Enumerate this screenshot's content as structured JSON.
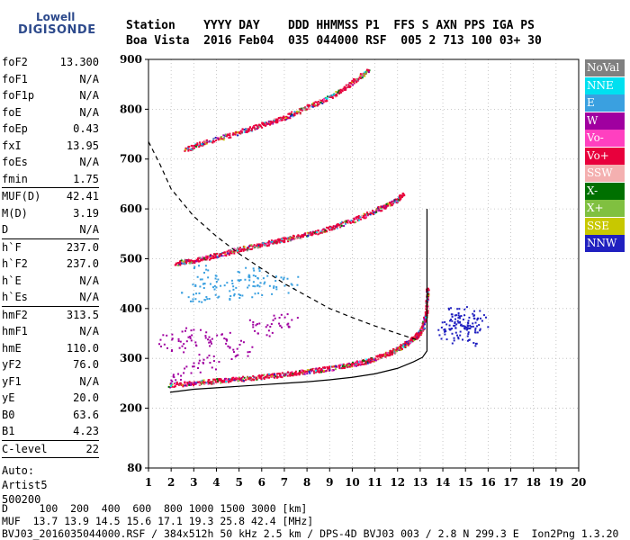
{
  "logo": {
    "line1": "Lowell",
    "line2": "DIGISONDE"
  },
  "header": {
    "line1": "Station    YYYY DAY    DDD HHMMSS P1  FFS S AXN PPS IGA PS",
    "line2": "Boa Vista  2016 Feb04  035 044000 RSF  005 2 713 100 03+ 30"
  },
  "params": [
    {
      "group": [
        {
          "label": "foF2",
          "value": "13.300"
        },
        {
          "label": "foF1",
          "value": "N/A"
        },
        {
          "label": "foF1p",
          "value": "N/A"
        },
        {
          "label": "foE",
          "value": "N/A"
        },
        {
          "label": "foEp",
          "value": "0.43"
        },
        {
          "label": "fxI",
          "value": "13.95"
        },
        {
          "label": "foEs",
          "value": "N/A"
        },
        {
          "label": "fmin",
          "value": "1.75"
        }
      ]
    },
    {
      "group": [
        {
          "label": "MUF(D)",
          "value": "42.41"
        },
        {
          "label": "M(D)",
          "value": "3.19"
        },
        {
          "label": "D",
          "value": "N/A"
        }
      ]
    },
    {
      "group": [
        {
          "label": "h`F",
          "value": "237.0"
        },
        {
          "label": "h`F2",
          "value": "237.0"
        },
        {
          "label": "h`E",
          "value": "N/A"
        },
        {
          "label": "h`Es",
          "value": "N/A"
        }
      ]
    },
    {
      "group": [
        {
          "label": "hmF2",
          "value": "313.5"
        },
        {
          "label": "hmF1",
          "value": "N/A"
        },
        {
          "label": "hmE",
          "value": "110.0"
        },
        {
          "label": "yF2",
          "value": "76.0"
        },
        {
          "label": "yF1",
          "value": "N/A"
        },
        {
          "label": "yE",
          "value": "20.0"
        },
        {
          "label": "B0",
          "value": "63.6"
        },
        {
          "label": "B1",
          "value": "4.23"
        }
      ]
    },
    {
      "group": [
        {
          "label": "C-level",
          "value": "22"
        }
      ]
    }
  ],
  "auto": {
    "line1": "Auto:",
    "line2": "Artist5",
    "line3": "500200"
  },
  "legend": [
    {
      "label": "NoVal",
      "color": "#808080"
    },
    {
      "label": "NNE",
      "color": "#00e0f0"
    },
    {
      "label": "E",
      "color": "#3aa0e0"
    },
    {
      "label": "W",
      "color": "#a000a0"
    },
    {
      "label": "Vo-",
      "color": "#ff40c0"
    },
    {
      "label": "Vo+",
      "color": "#e8003c"
    },
    {
      "label": "SSW",
      "color": "#f4b0b0"
    },
    {
      "label": "X-",
      "color": "#007000"
    },
    {
      "label": "X+",
      "color": "#80c040"
    },
    {
      "label": "SSE",
      "color": "#c8c800"
    },
    {
      "label": "NNW",
      "color": "#2020c0"
    }
  ],
  "footer": {
    "line1": "D     100  200  400  600  800 1000 1500 3000 [km]",
    "line2": "MUF  13.7 13.9 14.5 15.6 17.1 19.3 25.8 42.4 [MHz]",
    "line3": "BVJ03_2016035044000.RSF / 384x512h 50 kHz 2.5 km / DPS-4D BVJ03 003 / 2.8 N 299.3 E  Ion2Png 1.3.20"
  },
  "chart_data": {
    "type": "scatter",
    "xlabel": "",
    "ylabel": "",
    "xlim": [
      1,
      20
    ],
    "ylim": [
      80,
      900
    ],
    "x_ticks": [
      1,
      2,
      3,
      4,
      5,
      6,
      7,
      8,
      9,
      10,
      11,
      12,
      13,
      14,
      15,
      16,
      17,
      18,
      19,
      20
    ],
    "y_ticks": [
      80,
      200,
      300,
      400,
      500,
      600,
      700,
      800,
      900
    ],
    "grid": true,
    "series": [
      {
        "name": "Vo+",
        "color": "#e8003c",
        "kind": "trace",
        "points": [
          [
            1.9,
            248
          ],
          [
            3,
            252
          ],
          [
            4,
            256
          ],
          [
            5,
            260
          ],
          [
            6,
            264
          ],
          [
            7,
            269
          ],
          [
            8,
            275
          ],
          [
            9,
            281
          ],
          [
            10,
            289
          ],
          [
            10.8,
            298
          ],
          [
            11.5,
            310
          ],
          [
            12,
            320
          ],
          [
            12.5,
            335
          ],
          [
            12.9,
            350
          ],
          [
            13.1,
            365
          ],
          [
            13.25,
            395
          ],
          [
            13.3,
            440
          ]
        ]
      },
      {
        "name": "Vo+",
        "color": "#e8003c",
        "kind": "trace",
        "points": [
          [
            2.2,
            492
          ],
          [
            3,
            498
          ],
          [
            4,
            508
          ],
          [
            5,
            520
          ],
          [
            6,
            530
          ],
          [
            7,
            540
          ],
          [
            8,
            550
          ],
          [
            9,
            562
          ],
          [
            10,
            578
          ],
          [
            11,
            597
          ],
          [
            11.8,
            615
          ],
          [
            12.2,
            630
          ]
        ]
      },
      {
        "name": "Vo+",
        "color": "#e8003c",
        "kind": "trace",
        "points": [
          [
            2.6,
            720
          ],
          [
            3.5,
            735
          ],
          [
            5,
            755
          ],
          [
            6,
            770
          ],
          [
            7,
            785
          ],
          [
            8,
            805
          ],
          [
            9,
            825
          ],
          [
            10,
            855
          ],
          [
            10.7,
            880
          ]
        ]
      },
      {
        "name": "NNW",
        "color": "#2020c0",
        "kind": "cluster",
        "points": [
          [
            14.5,
            370
          ],
          [
            15,
            360
          ],
          [
            14.8,
            385
          ],
          [
            15.2,
            372
          ],
          [
            14.3,
            355
          ],
          [
            15.5,
            378
          ],
          [
            14.9,
            345
          ]
        ]
      },
      {
        "name": "W",
        "color": "#a000a0",
        "kind": "cluster",
        "points": [
          [
            2,
            330
          ],
          [
            3,
            345
          ],
          [
            4,
            335
          ],
          [
            5,
            320
          ],
          [
            6,
            360
          ],
          [
            7,
            380
          ],
          [
            2.5,
            270
          ],
          [
            3.5,
            290
          ]
        ]
      },
      {
        "name": "E",
        "color": "#3aa0e0",
        "kind": "cluster",
        "points": [
          [
            3,
            432
          ],
          [
            4,
            438
          ],
          [
            5,
            442
          ],
          [
            6,
            448
          ],
          [
            7,
            452
          ],
          [
            3.5,
            468
          ],
          [
            5.5,
            470
          ]
        ]
      }
    ],
    "profile_solid": [
      [
        1.95,
        232
      ],
      [
        3,
        238
      ],
      [
        4,
        241
      ],
      [
        5,
        244
      ],
      [
        6,
        247
      ],
      [
        7,
        250
      ],
      [
        8,
        253
      ],
      [
        9,
        257
      ],
      [
        10,
        262
      ],
      [
        11,
        269
      ],
      [
        12,
        280
      ],
      [
        12.7,
        293
      ],
      [
        13.1,
        302
      ],
      [
        13.3,
        315
      ],
      [
        13.3,
        600
      ]
    ],
    "profile_dashed": [
      [
        1,
        735
      ],
      [
        1.5,
        690
      ],
      [
        2,
        640
      ],
      [
        3,
        585
      ],
      [
        4,
        545
      ],
      [
        5,
        510
      ],
      [
        6,
        480
      ],
      [
        7,
        450
      ],
      [
        8,
        425
      ],
      [
        9,
        400
      ],
      [
        10,
        382
      ],
      [
        11,
        365
      ],
      [
        12,
        350
      ],
      [
        13,
        335
      ]
    ]
  }
}
